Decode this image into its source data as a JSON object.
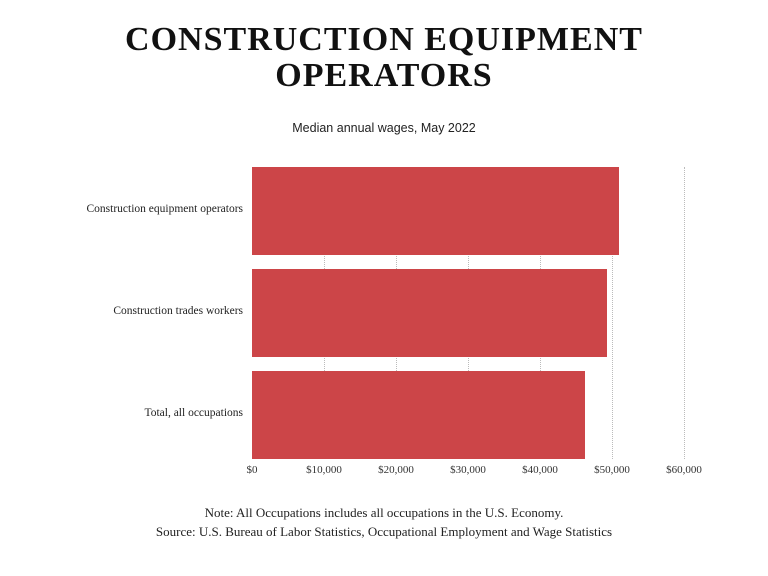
{
  "header": {
    "title_line1": "CONSTRUCTION EQUIPMENT",
    "title_line2": "OPERATORS",
    "subtitle": "Median annual wages, May 2022"
  },
  "footer": {
    "note": "Note: All Occupations includes all occupations in the U.S. Economy.",
    "source": "Source: U.S. Bureau of Labor Statistics, Occupational Employment and Wage Statistics"
  },
  "colors": {
    "bar": "#cc4548"
  },
  "chart_data": {
    "type": "bar",
    "orientation": "horizontal",
    "title": "CONSTRUCTION EQUIPMENT OPERATORS",
    "subtitle": "Median annual wages, May 2022",
    "categories": [
      "Construction equipment operators",
      "Construction trades workers",
      "Total, all occupations"
    ],
    "values": [
      51000,
      49300,
      46300
    ],
    "xlabel": "",
    "ylabel": "",
    "xlim": [
      0,
      60000
    ],
    "ticks": [
      "$0",
      "$10,000",
      "$20,000",
      "$30,000",
      "$40,000",
      "$50,000",
      "$60,000"
    ],
    "grid": true,
    "legend": "none"
  }
}
